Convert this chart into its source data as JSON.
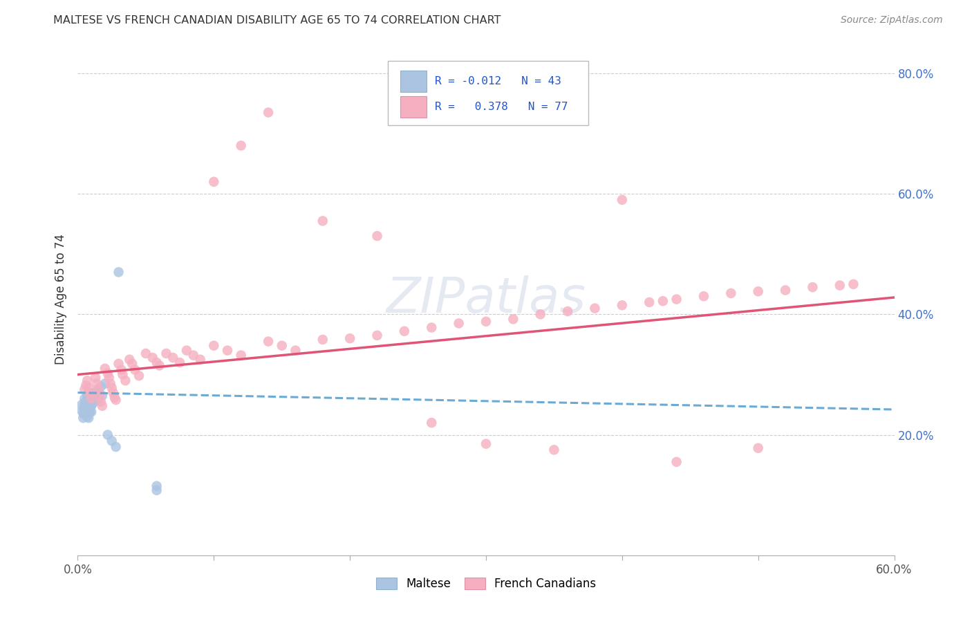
{
  "title": "MALTESE VS FRENCH CANADIAN DISABILITY AGE 65 TO 74 CORRELATION CHART",
  "source": "Source: ZipAtlas.com",
  "ylabel": "Disability Age 65 to 74",
  "xlim": [
    0.0,
    0.6
  ],
  "ylim": [
    0.0,
    0.85
  ],
  "maltese_R": "-0.012",
  "maltese_N": "43",
  "french_R": "0.378",
  "french_N": "77",
  "maltese_color": "#aac4e2",
  "french_color": "#f5afc0",
  "maltese_line_color": "#6aaad4",
  "french_line_color": "#e05575",
  "legend_maltese_label": "Maltese",
  "legend_french_label": "French Canadians",
  "maltese_x": [
    0.003,
    0.003,
    0.004,
    0.004,
    0.005,
    0.005,
    0.005,
    0.005,
    0.006,
    0.006,
    0.006,
    0.007,
    0.007,
    0.007,
    0.007,
    0.008,
    0.008,
    0.008,
    0.008,
    0.008,
    0.009,
    0.009,
    0.009,
    0.01,
    0.01,
    0.01,
    0.01,
    0.011,
    0.011,
    0.012,
    0.012,
    0.013,
    0.015,
    0.015,
    0.017,
    0.018,
    0.02,
    0.022,
    0.025,
    0.028,
    0.03,
    0.058,
    0.058
  ],
  "maltese_y": [
    0.25,
    0.24,
    0.235,
    0.228,
    0.26,
    0.25,
    0.245,
    0.235,
    0.255,
    0.245,
    0.235,
    0.265,
    0.255,
    0.245,
    0.23,
    0.27,
    0.262,
    0.25,
    0.24,
    0.228,
    0.258,
    0.248,
    0.238,
    0.268,
    0.258,
    0.248,
    0.238,
    0.265,
    0.252,
    0.27,
    0.255,
    0.268,
    0.275,
    0.26,
    0.28,
    0.265,
    0.285,
    0.2,
    0.19,
    0.18,
    0.47,
    0.115,
    0.108
  ],
  "french_x": [
    0.005,
    0.006,
    0.007,
    0.008,
    0.009,
    0.01,
    0.013,
    0.014,
    0.015,
    0.016,
    0.017,
    0.018,
    0.02,
    0.022,
    0.023,
    0.024,
    0.025,
    0.026,
    0.027,
    0.028,
    0.03,
    0.032,
    0.033,
    0.035,
    0.038,
    0.04,
    0.042,
    0.045,
    0.05,
    0.055,
    0.058,
    0.06,
    0.065,
    0.07,
    0.075,
    0.08,
    0.085,
    0.09,
    0.1,
    0.11,
    0.12,
    0.14,
    0.15,
    0.16,
    0.18,
    0.2,
    0.22,
    0.24,
    0.26,
    0.28,
    0.3,
    0.32,
    0.34,
    0.36,
    0.38,
    0.4,
    0.42,
    0.43,
    0.44,
    0.46,
    0.48,
    0.5,
    0.52,
    0.54,
    0.56,
    0.57,
    0.1,
    0.12,
    0.14,
    0.18,
    0.22,
    0.26,
    0.3,
    0.35,
    0.4,
    0.44,
    0.5
  ],
  "french_y": [
    0.275,
    0.282,
    0.29,
    0.278,
    0.268,
    0.26,
    0.295,
    0.285,
    0.275,
    0.265,
    0.255,
    0.248,
    0.31,
    0.302,
    0.295,
    0.285,
    0.278,
    0.27,
    0.262,
    0.258,
    0.318,
    0.308,
    0.3,
    0.29,
    0.325,
    0.318,
    0.308,
    0.298,
    0.335,
    0.328,
    0.32,
    0.315,
    0.335,
    0.328,
    0.32,
    0.34,
    0.332,
    0.325,
    0.348,
    0.34,
    0.332,
    0.355,
    0.348,
    0.34,
    0.358,
    0.36,
    0.365,
    0.372,
    0.378,
    0.385,
    0.388,
    0.392,
    0.4,
    0.405,
    0.41,
    0.415,
    0.42,
    0.422,
    0.425,
    0.43,
    0.435,
    0.438,
    0.44,
    0.445,
    0.448,
    0.45,
    0.62,
    0.68,
    0.735,
    0.555,
    0.53,
    0.22,
    0.185,
    0.175,
    0.59,
    0.155,
    0.178
  ]
}
